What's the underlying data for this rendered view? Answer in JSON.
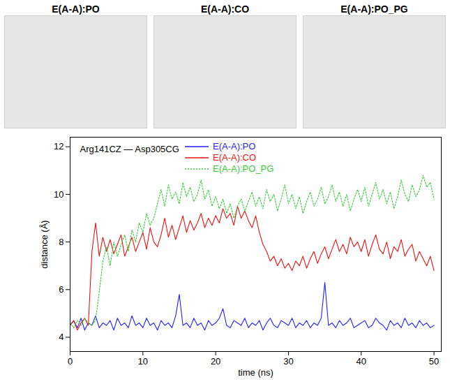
{
  "panels": [
    "E(A-A):PO",
    "E(A-A):CO",
    "E(A-A):PO_PG"
  ],
  "chart_data": {
    "type": "line",
    "annotation": "Arg141CZ — Asp305CG",
    "x_label": "time (ns)",
    "y_label": "distance (Å)",
    "xlim": [
      0,
      51
    ],
    "ylim": [
      3.4,
      12.4
    ],
    "xticks": [
      0,
      10,
      20,
      30,
      40,
      50
    ],
    "yticks": [
      4,
      6,
      8,
      10,
      12
    ],
    "grid": false,
    "legend": "top",
    "x": [
      0,
      0.5,
      1,
      1.5,
      2,
      2.5,
      3,
      3.5,
      4,
      4.5,
      5,
      5.5,
      6,
      6.5,
      7,
      7.5,
      8,
      8.5,
      9,
      9.5,
      10,
      10.5,
      11,
      11.5,
      12,
      12.5,
      13,
      13.5,
      14,
      14.5,
      15,
      15.5,
      16,
      16.5,
      17,
      17.5,
      18,
      18.5,
      19,
      19.5,
      20,
      20.5,
      21,
      21.5,
      22,
      22.5,
      23,
      23.5,
      24,
      24.5,
      25,
      25.5,
      26,
      26.5,
      27,
      27.5,
      28,
      28.5,
      29,
      29.5,
      30,
      30.5,
      31,
      31.5,
      32,
      32.5,
      33,
      33.5,
      34,
      34.5,
      35,
      35.5,
      36,
      36.5,
      37,
      37.5,
      38,
      38.5,
      39,
      39.5,
      40,
      40.5,
      41,
      41.5,
      42,
      42.5,
      43,
      43.5,
      44,
      44.5,
      45,
      45.5,
      46,
      46.5,
      47,
      47.5,
      48,
      48.5,
      49,
      49.5,
      50
    ],
    "series": [
      {
        "name": "E(A-A):PO",
        "color": "#1f1fff",
        "line_style": "solid",
        "values": [
          4.5,
          4.7,
          4.4,
          4.8,
          4.3,
          4.6,
          4.5,
          4.9,
          4.4,
          4.6,
          4.5,
          4.7,
          4.3,
          4.8,
          4.5,
          4.6,
          4.4,
          4.9,
          4.5,
          4.6,
          4.4,
          4.8,
          4.5,
          4.6,
          4.3,
          4.7,
          4.5,
          4.6,
          4.4,
          4.9,
          5.8,
          4.5,
          4.6,
          4.4,
          4.8,
          4.5,
          4.6,
          4.3,
          4.7,
          4.5,
          4.6,
          4.8,
          5.2,
          4.5,
          4.4,
          4.7,
          4.6,
          4.5,
          4.8,
          4.4,
          4.6,
          4.5,
          4.7,
          4.3,
          4.6,
          4.8,
          4.5,
          4.4,
          4.7,
          4.6,
          4.5,
          4.8,
          4.4,
          4.6,
          4.5,
          4.7,
          4.4,
          4.6,
          4.5,
          4.8,
          6.3,
          4.5,
          4.6,
          4.4,
          4.7,
          4.5,
          4.6,
          4.8,
          4.4,
          4.5,
          4.6,
          4.7,
          4.4,
          4.5,
          4.8,
          4.6,
          4.5,
          4.3,
          4.7,
          4.5,
          4.6,
          4.4,
          4.8,
          4.5,
          4.6,
          4.4,
          4.7,
          4.5,
          4.6,
          4.4,
          4.5
        ]
      },
      {
        "name": "E(A-A):CO",
        "color": "#ee1111",
        "line_style": "solid",
        "values": [
          4.5,
          4.7,
          4.3,
          4.6,
          4.8,
          4.5,
          7.6,
          8.8,
          7.4,
          8.2,
          7.6,
          8.1,
          7.5,
          7.9,
          8.3,
          7.4,
          7.8,
          8.2,
          7.6,
          8.0,
          8.4,
          7.7,
          8.6,
          8.0,
          7.8,
          8.3,
          9.0,
          8.2,
          8.7,
          8.1,
          8.6,
          9.1,
          8.4,
          8.9,
          8.5,
          8.8,
          9.2,
          8.6,
          9.0,
          8.7,
          9.1,
          8.8,
          9.4,
          9.0,
          9.2,
          8.7,
          9.5,
          9.0,
          9.3,
          8.9,
          8.6,
          9.1,
          8.4,
          7.9,
          7.6,
          7.2,
          7.4,
          7.0,
          7.3,
          6.9,
          7.1,
          6.8,
          7.2,
          7.0,
          7.4,
          6.9,
          7.3,
          7.6,
          7.1,
          7.5,
          7.8,
          7.3,
          7.7,
          8.1,
          7.6,
          7.9,
          7.5,
          8.2,
          7.8,
          8.0,
          7.6,
          8.1,
          7.4,
          7.9,
          8.3,
          7.7,
          7.5,
          8.0,
          7.3,
          7.8,
          7.6,
          8.1,
          7.4,
          7.7,
          7.9,
          7.2,
          7.6,
          7.3,
          7.0,
          7.4,
          6.8
        ]
      },
      {
        "name": "E(A-A):PO_PG",
        "color": "#33cc33",
        "line_style": "dotted",
        "values": [
          4.6,
          4.4,
          4.7,
          4.5,
          4.8,
          4.6,
          4.5,
          4.7,
          5.9,
          7.2,
          7.8,
          7.0,
          8.0,
          7.4,
          7.9,
          8.3,
          7.6,
          8.5,
          8.0,
          8.8,
          8.4,
          9.2,
          8.7,
          9.0,
          9.6,
          10.2,
          9.5,
          10.4,
          9.8,
          10.1,
          9.6,
          10.5,
          9.9,
          10.3,
          9.7,
          10.0,
          10.6,
          9.8,
          10.2,
          9.5,
          9.9,
          9.4,
          9.8,
          9.2,
          9.6,
          9.0,
          9.5,
          9.8,
          9.3,
          9.7,
          10.1,
          9.5,
          9.9,
          9.4,
          10.2,
          9.7,
          10.0,
          9.3,
          9.8,
          10.4,
          9.6,
          10.0,
          9.4,
          9.9,
          9.2,
          9.7,
          10.1,
          9.5,
          9.8,
          10.3,
          9.6,
          9.9,
          10.4,
          9.7,
          10.1,
          9.5,
          10.0,
          9.3,
          9.8,
          10.2,
          9.7,
          10.3,
          9.5,
          10.0,
          10.5,
          9.8,
          10.2,
          9.6,
          10.1,
          9.4,
          9.9,
          10.6,
          10.0,
          9.7,
          10.4,
          9.9,
          10.2,
          10.8,
          10.3,
          10.5,
          9.8
        ]
      }
    ]
  }
}
